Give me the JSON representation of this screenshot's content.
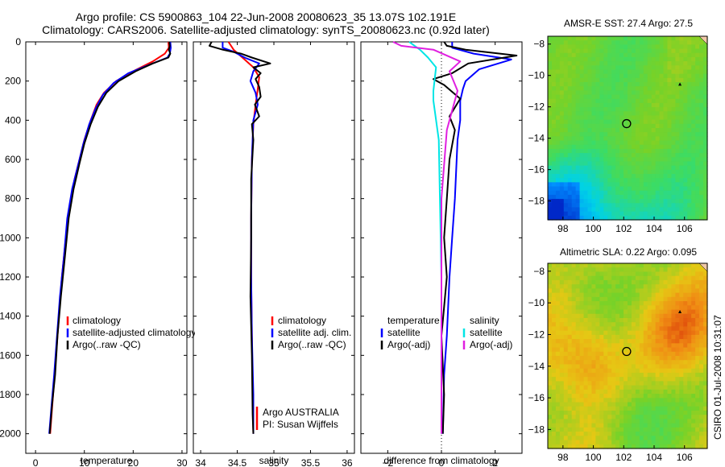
{
  "header": {
    "title_line1": "Argo profile: CS 5900863_104 22-Jun-2008 20080623_35 13.07S 102.191E",
    "title_line2": "Climatology: CARS2006. Satellite-adjusted climatology: synTS_20080623.nc (0.92d later)"
  },
  "colors": {
    "climatology": "#ff0000",
    "satellite": "#0000ff",
    "argo": "#000000",
    "sat_salinity": "#00e5e5",
    "argo_adj_salinity": "#e020e0"
  },
  "chart_data": [
    {
      "id": "temperature",
      "type": "line",
      "xlabel": "temperature",
      "ylabel": "",
      "xlim": [
        -2,
        31
      ],
      "ylim": [
        2100,
        0
      ],
      "xticks": [
        0,
        10,
        20,
        30
      ],
      "yticks": [
        0,
        200,
        400,
        600,
        800,
        1000,
        1200,
        1400,
        1600,
        1800,
        2000
      ],
      "legend": [
        "climatology",
        "satellite-adjusted climatology",
        "Argo(..raw -QC)"
      ],
      "series": [
        {
          "name": "climatology",
          "color": "#ff0000",
          "points": [
            [
              27.2,
              0
            ],
            [
              27.3,
              30
            ],
            [
              26.5,
              60
            ],
            [
              24,
              100
            ],
            [
              20,
              150
            ],
            [
              16.5,
              200
            ],
            [
              14,
              260
            ],
            [
              12.5,
              320
            ],
            [
              11.3,
              400
            ],
            [
              10,
              500
            ],
            [
              9,
              600
            ],
            [
              8,
              700
            ],
            [
              7,
              850
            ],
            [
              6.2,
              1000
            ],
            [
              5.4,
              1200
            ],
            [
              4.8,
              1400
            ],
            [
              4.2,
              1600
            ],
            [
              3.6,
              1800
            ],
            [
              3,
              2000
            ]
          ]
        },
        {
          "name": "satellite-adjusted climatology",
          "color": "#0000ff",
          "points": [
            [
              27.6,
              0
            ],
            [
              27.7,
              30
            ],
            [
              27.5,
              60
            ],
            [
              27,
              80
            ],
            [
              23,
              120
            ],
            [
              19,
              160
            ],
            [
              16,
              210
            ],
            [
              13.8,
              270
            ],
            [
              12.3,
              340
            ],
            [
              11,
              420
            ],
            [
              9.8,
              520
            ],
            [
              8.8,
              620
            ],
            [
              7.5,
              750
            ],
            [
              6.5,
              900
            ],
            [
              5.8,
              1100
            ],
            [
              5,
              1300
            ],
            [
              4.4,
              1500
            ],
            [
              3.8,
              1700
            ],
            [
              3.3,
              1850
            ],
            [
              2.8,
              2000
            ]
          ]
        },
        {
          "name": "Argo(..raw -QC)",
          "color": "#000000",
          "points": [
            [
              27.4,
              0
            ],
            [
              27.5,
              20
            ],
            [
              27.3,
              40
            ],
            [
              27.6,
              60
            ],
            [
              27.2,
              80
            ],
            [
              24,
              110
            ],
            [
              20.5,
              150
            ],
            [
              17,
              200
            ],
            [
              14.5,
              260
            ],
            [
              12.8,
              330
            ],
            [
              11.3,
              420
            ],
            [
              10,
              520
            ],
            [
              9,
              620
            ],
            [
              7.8,
              750
            ],
            [
              6.8,
              900
            ],
            [
              6,
              1100
            ],
            [
              5.2,
              1300
            ],
            [
              4.5,
              1500
            ],
            [
              4,
              1700
            ],
            [
              3.4,
              1850
            ],
            [
              2.9,
              2000
            ]
          ]
        }
      ]
    },
    {
      "id": "salinity",
      "type": "line",
      "xlabel": "salinity",
      "ylabel": "",
      "xlim": [
        33.9,
        36.1
      ],
      "ylim": [
        2100,
        0
      ],
      "xticks": [
        34,
        34.5,
        35,
        35.5,
        36
      ],
      "legend": [
        "climatology",
        "satellite adj. clim.",
        "Argo(..raw -QC)"
      ],
      "annotation": [
        "Argo AUSTRALIA",
        "PI: Susan Wijffels"
      ],
      "series": [
        {
          "name": "climatology",
          "color": "#ff0000",
          "points": [
            [
              34.38,
              0
            ],
            [
              34.45,
              40
            ],
            [
              34.6,
              90
            ],
            [
              34.72,
              130
            ],
            [
              34.8,
              180
            ],
            [
              34.78,
              240
            ],
            [
              34.75,
              320
            ],
            [
              34.72,
              420
            ],
            [
              34.7,
              600
            ],
            [
              34.69,
              900
            ],
            [
              34.69,
              1200
            ],
            [
              34.7,
              1500
            ],
            [
              34.71,
              1800
            ],
            [
              34.72,
              2000
            ]
          ]
        },
        {
          "name": "satellite adj. clim.",
          "color": "#0000ff",
          "points": [
            [
              34.3,
              0
            ],
            [
              34.3,
              30
            ],
            [
              34.45,
              50
            ],
            [
              34.6,
              80
            ],
            [
              34.8,
              110
            ],
            [
              34.72,
              150
            ],
            [
              34.68,
              200
            ],
            [
              34.75,
              260
            ],
            [
              34.78,
              320
            ],
            [
              34.72,
              400
            ],
            [
              34.7,
              600
            ],
            [
              34.69,
              900
            ],
            [
              34.69,
              1200
            ],
            [
              34.7,
              1500
            ],
            [
              34.72,
              1800
            ],
            [
              34.72,
              2000
            ]
          ]
        },
        {
          "name": "Argo(..raw -QC)",
          "color": "#000000",
          "points": [
            [
              34.15,
              0
            ],
            [
              34.12,
              20
            ],
            [
              34.3,
              40
            ],
            [
              34.55,
              60
            ],
            [
              34.7,
              80
            ],
            [
              34.95,
              110
            ],
            [
              34.72,
              130
            ],
            [
              34.82,
              160
            ],
            [
              34.75,
              190
            ],
            [
              34.8,
              230
            ],
            [
              34.82,
              280
            ],
            [
              34.74,
              320
            ],
            [
              34.8,
              380
            ],
            [
              34.7,
              420
            ],
            [
              34.72,
              500
            ],
            [
              34.69,
              700
            ],
            [
              34.69,
              1000
            ],
            [
              34.68,
              1300
            ],
            [
              34.7,
              1600
            ],
            [
              34.71,
              1900
            ],
            [
              34.72,
              2000
            ]
          ]
        }
      ]
    },
    {
      "id": "difference",
      "type": "line",
      "xlabel": "difference from climatology",
      "ylabel": "",
      "xlim": [
        -3,
        3
      ],
      "ylim": [
        2100,
        0
      ],
      "xticks": [
        -2,
        0,
        2
      ],
      "legend_headers": [
        "temperature",
        "salinity"
      ],
      "legend": [
        "satellite",
        "Argo(-adj)",
        "satellite",
        "Argo(-adj)"
      ],
      "series": [
        {
          "name": "temperature satellite",
          "color": "#0000ff",
          "points": [
            [
              0.4,
              0
            ],
            [
              0.4,
              30
            ],
            [
              1.2,
              60
            ],
            [
              2.6,
              90
            ],
            [
              1.4,
              140
            ],
            [
              0.9,
              200
            ],
            [
              0.8,
              240
            ],
            [
              0.7,
              300
            ],
            [
              0.7,
              400
            ],
            [
              0.6,
              500
            ],
            [
              0.5,
              800
            ],
            [
              0.4,
              1000
            ],
            [
              0.3,
              1200
            ],
            [
              0.2,
              1500
            ],
            [
              0.1,
              1700
            ],
            [
              0.05,
              2000
            ]
          ]
        },
        {
          "name": "temperature Argo(-adj)",
          "color": "#000000",
          "points": [
            [
              0.1,
              0
            ],
            [
              0.2,
              20
            ],
            [
              0.9,
              40
            ],
            [
              2.8,
              70
            ],
            [
              1,
              110
            ],
            [
              0.4,
              160
            ],
            [
              -0.3,
              190
            ],
            [
              0.1,
              220
            ],
            [
              0.7,
              290
            ],
            [
              0.3,
              380
            ],
            [
              0.5,
              450
            ],
            [
              0.3,
              600
            ],
            [
              0.2,
              800
            ],
            [
              0.1,
              1000
            ],
            [
              0.2,
              1200
            ],
            [
              0,
              1500
            ],
            [
              0.1,
              1800
            ],
            [
              0.05,
              2000
            ]
          ]
        },
        {
          "name": "salinity satellite",
          "color": "#00e5e5",
          "points": [
            [
              -1.2,
              0
            ],
            [
              -1.0,
              20
            ],
            [
              -0.8,
              40
            ],
            [
              -0.5,
              80
            ],
            [
              -0.2,
              130
            ],
            [
              -0.3,
              250
            ],
            [
              -0.3,
              300
            ],
            [
              -0.1,
              500
            ],
            [
              0,
              1200
            ],
            [
              0,
              2000
            ]
          ]
        },
        {
          "name": "salinity Argo(-adj)",
          "color": "#e020e0",
          "points": [
            [
              -1.8,
              0
            ],
            [
              -1.5,
              20
            ],
            [
              -0.3,
              40
            ],
            [
              0.7,
              100
            ],
            [
              0.3,
              150
            ],
            [
              0.6,
              250
            ],
            [
              0.4,
              350
            ],
            [
              0.2,
              450
            ],
            [
              0,
              800
            ],
            [
              0,
              1600
            ],
            [
              0,
              2000
            ]
          ]
        }
      ]
    },
    {
      "id": "sst_map",
      "type": "heatmap",
      "title": "AMSR-E SST: 27.4 Argo: 27.5",
      "xlim": [
        97,
        107.5
      ],
      "ylim": [
        -19.2,
        -7.5
      ],
      "xticks": [
        98,
        100,
        102,
        104,
        106
      ],
      "yticks": [
        -8,
        -10,
        -12,
        -14,
        -16,
        -18
      ],
      "argo_position": [
        102.19,
        -13.07
      ]
    },
    {
      "id": "sla_map",
      "type": "heatmap",
      "title": "Altimetric SLA: 0.22 Argo: 0.095",
      "xlim": [
        97,
        107.5
      ],
      "ylim": [
        -19.2,
        -7.5
      ],
      "xticks": [
        98,
        100,
        102,
        104,
        106
      ],
      "yticks": [
        -8,
        -10,
        -12,
        -14,
        -16,
        -18
      ],
      "argo_position": [
        102.19,
        -13.07
      ]
    }
  ],
  "footer": {
    "stamp": "CSIRO 01-Jul-2008 10:31:07"
  }
}
